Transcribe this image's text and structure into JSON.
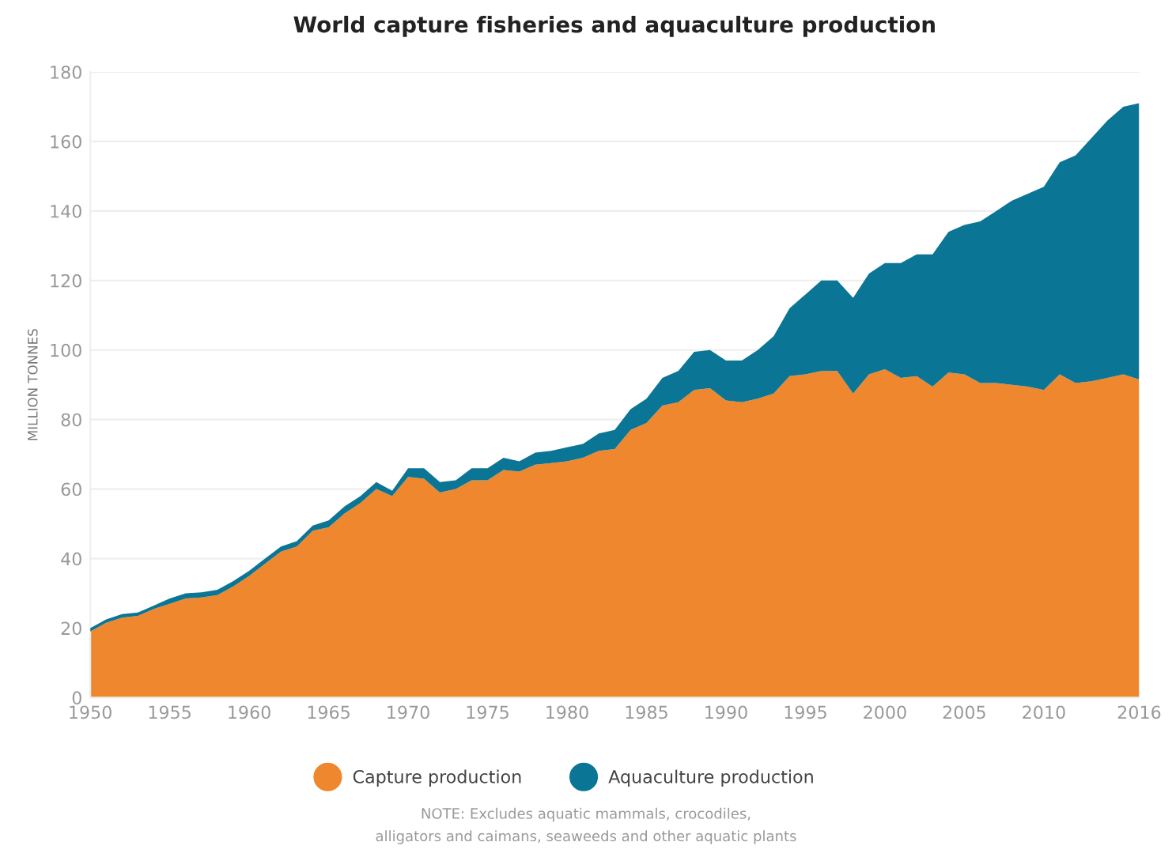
{
  "chart_data": {
    "type": "area",
    "stacked": true,
    "title": "World capture fisheries and aquaculture production",
    "ylabel": "MILLION TONNES",
    "x": [
      1950,
      1951,
      1952,
      1953,
      1954,
      1955,
      1956,
      1957,
      1958,
      1959,
      1960,
      1961,
      1962,
      1963,
      1964,
      1965,
      1966,
      1967,
      1968,
      1969,
      1970,
      1971,
      1972,
      1973,
      1974,
      1975,
      1976,
      1977,
      1978,
      1979,
      1980,
      1981,
      1982,
      1983,
      1984,
      1985,
      1986,
      1987,
      1988,
      1989,
      1990,
      1991,
      1992,
      1993,
      1994,
      1995,
      1996,
      1997,
      1998,
      1999,
      2000,
      2001,
      2002,
      2003,
      2004,
      2005,
      2006,
      2007,
      2008,
      2009,
      2010,
      2011,
      2012,
      2013,
      2014,
      2015,
      2016
    ],
    "series": [
      {
        "name": "Capture production",
        "color": "#ee872d",
        "values": [
          19,
          21.5,
          23,
          23.5,
          25.5,
          27,
          28.5,
          28.8,
          29.5,
          32,
          35,
          38.5,
          42,
          43.5,
          48,
          49,
          53,
          56,
          60,
          58,
          63.5,
          63,
          59,
          60,
          62.5,
          62.5,
          65.5,
          65,
          67,
          67.5,
          68,
          69,
          71,
          71.5,
          77,
          79,
          84,
          85,
          88.5,
          89,
          85.5,
          85,
          86,
          87.5,
          92.5,
          93,
          94,
          94,
          87.5,
          93,
          94.5,
          92,
          92.5,
          89.5,
          93.5,
          93,
          90.5,
          90.5,
          90,
          89.5,
          88.5,
          93,
          90.5,
          91,
          92,
          93,
          91.5
        ]
      },
      {
        "name": "Aquaculture production",
        "color": "#0b7595",
        "values": [
          1,
          1,
          1,
          1,
          1,
          1.5,
          1.5,
          1.5,
          1.5,
          1.5,
          1.5,
          1.5,
          1.5,
          1.5,
          1.5,
          2,
          2,
          2,
          2,
          1.5,
          2.5,
          3,
          3,
          2.5,
          3.5,
          3.5,
          3.5,
          3,
          3.5,
          3.5,
          4,
          4,
          5,
          5.5,
          6,
          7,
          8,
          9,
          11,
          11,
          11.5,
          12,
          14,
          16.5,
          19.5,
          23,
          26,
          26,
          27.5,
          29,
          30.5,
          33,
          35,
          38,
          40.5,
          43,
          46.5,
          49.5,
          53,
          55.5,
          58.5,
          61,
          65.5,
          70,
          74,
          77,
          79.5
        ]
      }
    ],
    "xlim": [
      1950,
      2016
    ],
    "xticks": [
      1950,
      1955,
      1960,
      1965,
      1970,
      1975,
      1980,
      1985,
      1990,
      1995,
      2000,
      2005,
      2010,
      2016
    ],
    "ylim": [
      0,
      180
    ],
    "yticks": [
      0,
      20,
      40,
      60,
      80,
      100,
      120,
      140,
      160,
      180
    ],
    "grid": "y",
    "legend": "bottom",
    "annotations": [
      "NOTE: Excludes aquatic mammals, crocodiles,\nalligators and caimans, seaweeds and other aquatic plants"
    ]
  }
}
